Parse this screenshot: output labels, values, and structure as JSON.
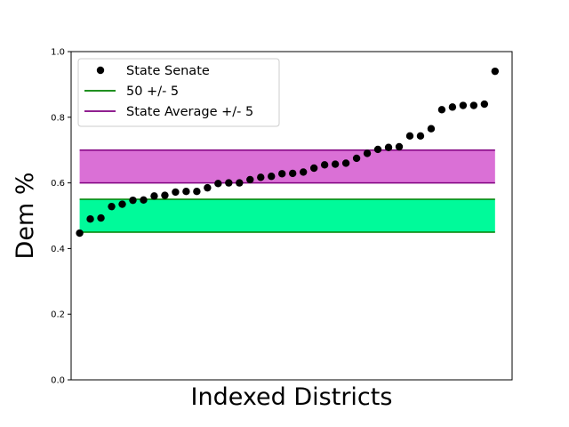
{
  "chart_data": {
    "type": "scatter",
    "title": "",
    "xlabel": "Indexed Districts",
    "ylabel": "Dem %",
    "ylim": [
      0.0,
      1.0
    ],
    "yticks": [
      "0.0",
      "0.2",
      "0.4",
      "0.6",
      "0.8",
      "1.0"
    ],
    "xticks": [],
    "grid": false,
    "legend_position": "upper-left",
    "series": [
      {
        "name": "State Senate",
        "kind": "scatter",
        "color": "#000000",
        "x": [
          1,
          2,
          3,
          4,
          5,
          6,
          7,
          8,
          9,
          10,
          11,
          12,
          13,
          14,
          15,
          16,
          17,
          18,
          19,
          20,
          21,
          22,
          23,
          24,
          25,
          26,
          27,
          28,
          29,
          30,
          31,
          32,
          33,
          34,
          35,
          36,
          37,
          38,
          39,
          40
        ],
        "y": [
          0.447,
          0.49,
          0.493,
          0.528,
          0.535,
          0.547,
          0.548,
          0.56,
          0.562,
          0.572,
          0.574,
          0.574,
          0.585,
          0.598,
          0.6,
          0.6,
          0.61,
          0.617,
          0.62,
          0.628,
          0.629,
          0.633,
          0.645,
          0.655,
          0.657,
          0.66,
          0.675,
          0.69,
          0.702,
          0.708,
          0.71,
          0.743,
          0.743,
          0.765,
          0.823,
          0.831,
          0.836,
          0.836,
          0.84,
          0.94
        ]
      }
    ],
    "bands": [
      {
        "name": "50 +/- 5",
        "low": 0.45,
        "high": 0.55,
        "line_color": "#008000",
        "fill_color": "#00fa9a"
      },
      {
        "name": "State Average +/- 5",
        "low": 0.6,
        "high": 0.7,
        "line_color": "#800080",
        "fill_color": "#da70d6"
      }
    ]
  }
}
